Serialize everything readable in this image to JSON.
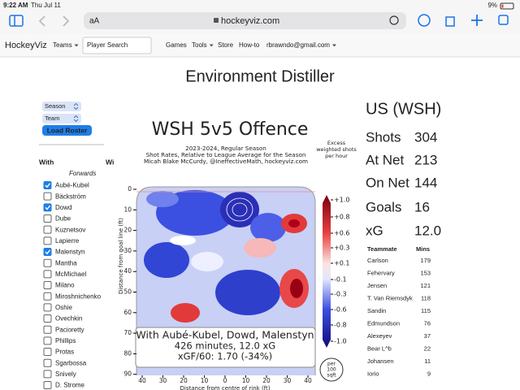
{
  "status_bar": {
    "time": "9:22 AM",
    "date": "Thu Jul 11",
    "battery": "9%"
  },
  "browser": {
    "text_size": "aA",
    "url": "hockeyviz.com"
  },
  "nav": {
    "brand": "HockeyViz",
    "search_placeholder": "Player Search",
    "items": [
      {
        "label": "Teams",
        "dropdown": true
      },
      {
        "label": "Games",
        "dropdown": false
      },
      {
        "label": "Tools",
        "dropdown": true
      },
      {
        "label": "Store",
        "dropdown": false
      },
      {
        "label": "How-to",
        "dropdown": false
      },
      {
        "label": "rbrawndo@gmail.com",
        "dropdown": true
      }
    ]
  },
  "page_title": "Environment Distiller",
  "sidebar": {
    "season": "Season",
    "team": "Team",
    "load_button": "Load Roster",
    "col_with": "With",
    "col_without": "Wi",
    "group": "Forwards",
    "players": [
      {
        "name": "Aubé-Kubel",
        "checked": true
      },
      {
        "name": "Bäckström",
        "checked": false
      },
      {
        "name": "Dowd",
        "checked": true
      },
      {
        "name": "Dube",
        "checked": false
      },
      {
        "name": "Kuznetsov",
        "checked": false
      },
      {
        "name": "Lapierre",
        "checked": false
      },
      {
        "name": "Malenstyn",
        "checked": true
      },
      {
        "name": "Mantha",
        "checked": false
      },
      {
        "name": "McMichael",
        "checked": false
      },
      {
        "name": "Milano",
        "checked": false
      },
      {
        "name": "Miroshnichenko",
        "checked": false
      },
      {
        "name": "Oshie",
        "checked": false
      },
      {
        "name": "Ovechkin",
        "checked": false
      },
      {
        "name": "Pacioretty",
        "checked": false
      },
      {
        "name": "Phillips",
        "checked": false
      },
      {
        "name": "Protas",
        "checked": false
      },
      {
        "name": "Sgarbossa",
        "checked": false
      },
      {
        "name": "Snively",
        "checked": false
      },
      {
        "name": "D. Strome",
        "checked": false
      }
    ]
  },
  "chart": {
    "title": "WSH 5v5 Offence",
    "subtitle": [
      "2023-2024, Regular Season",
      "Shot Rates, Relative to League Average for the Season",
      "Micah Blake McCurdy, @IneffectiveMath, hockeyviz.com"
    ],
    "colorbar_label": [
      "Excess",
      "weighted shots",
      "per hour"
    ],
    "colorbar_ticks": [
      "+1.0",
      "+0.8",
      "+0.6",
      "+0.3",
      "+0.1",
      "-0.1",
      "-0.3",
      "-0.6",
      "-0.8",
      "-1.0"
    ],
    "y_label": "Distance from goal line (ft)",
    "y_ticks": [
      0,
      10,
      20,
      30,
      40,
      50,
      60,
      70,
      80,
      90
    ],
    "x_label": "Distance from centre of rink (ft)",
    "x_ticks": [
      40,
      30,
      20,
      10,
      0,
      10,
      20,
      30,
      40
    ],
    "info": [
      "With Aubé-Kubel, Dowd, Malenstyn",
      "426 minutes, 12.0 xG",
      "xGF/60: 1.70 (-34%)"
    ],
    "unit": [
      "per",
      "100",
      "sqft"
    ]
  },
  "summary": {
    "team": "US (WSH)",
    "stats": [
      {
        "label": "Shots",
        "value": "304"
      },
      {
        "label": "At Net",
        "value": "213"
      },
      {
        "label": "On Net",
        "value": "144"
      },
      {
        "label": "Goals",
        "value": "16"
      },
      {
        "label": "xG",
        "value": "12.0"
      }
    ],
    "headers": [
      "Teammate",
      "Mins"
    ],
    "rows": [
      [
        "Carlson",
        "179"
      ],
      [
        "Fehervary",
        "153"
      ],
      [
        "Jensen",
        "121"
      ],
      [
        "T. Van Riemsdyk",
        "118"
      ],
      [
        "Sandin",
        "115"
      ],
      [
        "Edmundson",
        "76"
      ],
      [
        "Alexeyev",
        "37"
      ],
      [
        "Bear L^b",
        "22"
      ],
      [
        "Johansen",
        "11"
      ],
      [
        "Iorio",
        "9"
      ]
    ]
  }
}
